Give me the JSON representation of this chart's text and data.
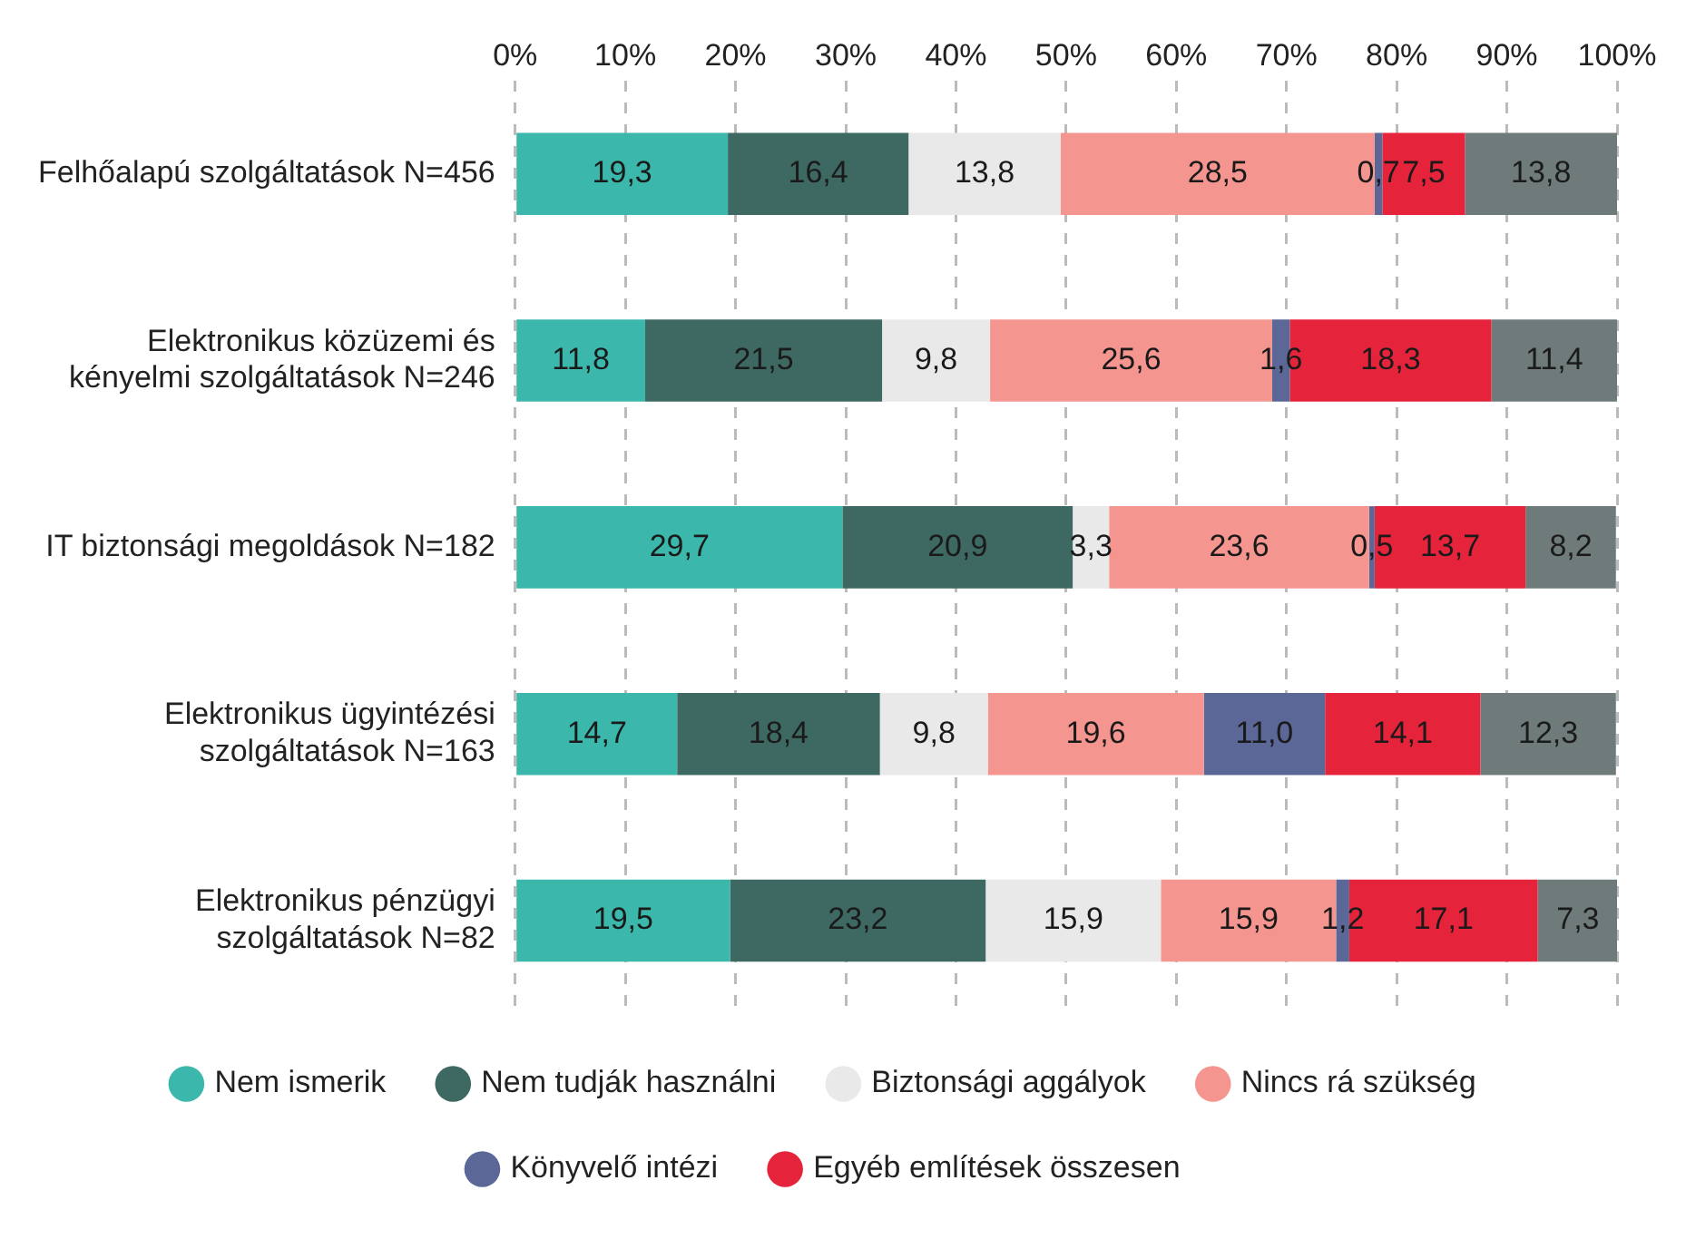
{
  "chart_data": {
    "type": "bar",
    "orientation": "horizontal",
    "stacked": true,
    "categories": [
      "Felhőalapú szolgáltatások N=456",
      "Elektronikus közüzemi és kényelmi szolgáltatások N=246",
      "IT biztonsági megoldások N=182",
      "Elektronikus ügyintézési szolgáltatások N=163",
      "Elektronikus pénzügyi szolgáltatások N=82"
    ],
    "series": [
      {
        "name": "Nem ismerik",
        "color": "#3bb8ab",
        "values": [
          19.3,
          11.8,
          29.7,
          14.7,
          19.5
        ],
        "value_labels": [
          "19,3",
          "11,8",
          "29,7",
          "14,7",
          "19,5"
        ]
      },
      {
        "name": "Nem tudják használni",
        "color": "#3e6962",
        "values": [
          16.4,
          21.5,
          20.9,
          18.4,
          23.2
        ],
        "value_labels": [
          "16,4",
          "21,5",
          "20,9",
          "18,4",
          "23,2"
        ]
      },
      {
        "name": "Biztonsági aggályok",
        "color": "#e9e9e9",
        "values": [
          13.8,
          9.8,
          3.3,
          9.8,
          15.9
        ],
        "value_labels": [
          "13,8",
          "9,8",
          "3,3",
          "9,8",
          "15,9"
        ]
      },
      {
        "name": "Nincs rá szükség",
        "color": "#f4958f",
        "values": [
          28.5,
          25.6,
          23.6,
          19.6,
          15.9
        ],
        "value_labels": [
          "28,5",
          "25,6",
          "23,6",
          "19,6",
          "15,9"
        ]
      },
      {
        "name": "Könyvelő intézi",
        "color": "#5b6796",
        "values": [
          0.7,
          1.6,
          0.5,
          11.0,
          1.2
        ],
        "value_labels": [
          "0,7",
          "1,6",
          "0,5",
          "11,0",
          "1,2"
        ]
      },
      {
        "name": "Egyéb említések összesen",
        "color": "#e5233a",
        "values": [
          7.5,
          18.3,
          13.7,
          14.1,
          17.1
        ],
        "value_labels": [
          "7,5",
          "18,3",
          "13,7",
          "14,1",
          "17,1"
        ]
      },
      {
        "color": "#6f7b7b",
        "values": [
          13.8,
          11.4,
          8.2,
          12.3,
          7.3
        ],
        "value_labels": [
          "13,8",
          "11,4",
          "8,2",
          "12,3",
          "7,3"
        ]
      }
    ],
    "xlim": [
      0,
      100
    ],
    "xticks": [
      {
        "value": 0,
        "label": "0%"
      },
      {
        "value": 10,
        "label": "10%"
      },
      {
        "value": 20,
        "label": "20%"
      },
      {
        "value": 30,
        "label": "30%"
      },
      {
        "value": 40,
        "label": "40%"
      },
      {
        "value": 50,
        "label": "50%"
      },
      {
        "value": 60,
        "label": "60%"
      },
      {
        "value": 70,
        "label": "70%"
      },
      {
        "value": 80,
        "label": "80%"
      },
      {
        "value": 90,
        "label": "90%"
      },
      {
        "value": 100,
        "label": "100%"
      }
    ],
    "grid": "x",
    "legend": "bottom",
    "marker": "circle"
  }
}
